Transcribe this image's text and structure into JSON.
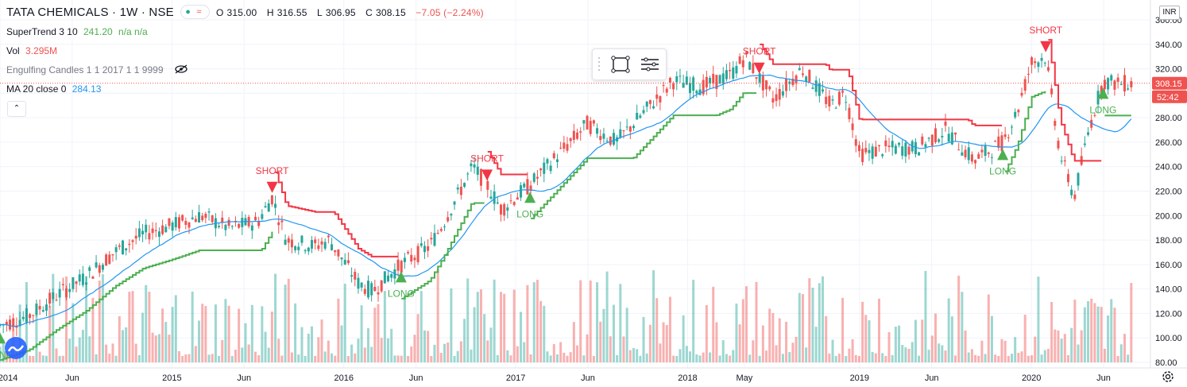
{
  "header": {
    "symbol": "TATA CHEMICALS · 1W · NSE",
    "open_label": "O",
    "open": "315.00",
    "high_label": "H",
    "high": "316.55",
    "low_label": "L",
    "low": "306.95",
    "close_label": "C",
    "close": "308.15",
    "change": "−7.05 (−2.24%)"
  },
  "indicators": [
    {
      "name": "SuperTrend 3 10",
      "value": "241.20",
      "extra": "n/a  n/a"
    },
    {
      "name": "Vol",
      "value": "3.295M"
    },
    {
      "name": "Engulfing Candles 1 1 2017 1 1 9999"
    },
    {
      "name": "MA 20 close 0",
      "value": "284.13"
    }
  ],
  "currency_badge": "INR",
  "colors": {
    "up": "#26a69a",
    "down": "#ef5350",
    "st_up": "#4caf50",
    "st_down": "#f23645",
    "ma": "#2196f3",
    "grid": "#f0f3fa"
  },
  "icons": [
    "visibility-off-icon",
    "chevron-up-icon",
    "rectangle-tool-icon",
    "settings-lines-icon",
    "gear-icon",
    "tradingview-logo-icon"
  ],
  "chart_data": {
    "type": "candlestick",
    "title": "TATA CHEMICALS",
    "yaxis": {
      "min": 80,
      "max": 360,
      "ticks": [
        80,
        100,
        120,
        140,
        160,
        180,
        200,
        220,
        240,
        260,
        280,
        300,
        320,
        340,
        360
      ],
      "tick_labels": [
        "80.00",
        "100.00",
        "120.00",
        "140.00",
        "160.00",
        "180.00",
        "200.00",
        "220.00",
        "240.00",
        "260.00",
        "280.00",
        "300.00",
        "320.00",
        "340.00",
        "360.00"
      ]
    },
    "xaxis": {
      "tick_labels": [
        "2014",
        "Jun",
        "2015",
        "Jun",
        "2016",
        "Jun",
        "2017",
        "Jun",
        "2018",
        "May",
        "2019",
        "Jun",
        "2020",
        "Jun"
      ]
    },
    "last_price": "308.15",
    "countdown": "52:42",
    "close_trend": [
      [
        "2014-01",
        110
      ],
      [
        "2014-03",
        118
      ],
      [
        "2014-05",
        135
      ],
      [
        "2014-07",
        150
      ],
      [
        "2014-09",
        170
      ],
      [
        "2014-11",
        185
      ],
      [
        "2015-01",
        192
      ],
      [
        "2015-03",
        200
      ],
      [
        "2015-05",
        190
      ],
      [
        "2015-07",
        195
      ],
      [
        "2015-08",
        215
      ],
      [
        "2015-09",
        180
      ],
      [
        "2015-11",
        175
      ],
      [
        "2015-12",
        180
      ],
      [
        "2016-02",
        145
      ],
      [
        "2016-03",
        138
      ],
      [
        "2016-05",
        160
      ],
      [
        "2016-07",
        175
      ],
      [
        "2016-08",
        195
      ],
      [
        "2016-10",
        240
      ],
      [
        "2016-11",
        225
      ],
      [
        "2016-12",
        205
      ],
      [
        "2017-02",
        225
      ],
      [
        "2017-04",
        250
      ],
      [
        "2017-06",
        275
      ],
      [
        "2017-08",
        260
      ],
      [
        "2017-10",
        285
      ],
      [
        "2017-12",
        310
      ],
      [
        "2018-02",
        305
      ],
      [
        "2018-04",
        315
      ],
      [
        "2018-05",
        330
      ],
      [
        "2018-07",
        295
      ],
      [
        "2018-09",
        320
      ],
      [
        "2018-11",
        290
      ],
      [
        "2018-12",
        300
      ],
      [
        "2019-01",
        250
      ],
      [
        "2019-03",
        255
      ],
      [
        "2019-05",
        255
      ],
      [
        "2019-07",
        270
      ],
      [
        "2019-09",
        245
      ],
      [
        "2019-11",
        260
      ],
      [
        "2019-12",
        285
      ],
      [
        "2020-01",
        325
      ],
      [
        "2020-02",
        330
      ],
      [
        "2020-03",
        250
      ],
      [
        "2020-04",
        215
      ],
      [
        "2020-05",
        270
      ],
      [
        "2020-06",
        310
      ],
      [
        "2020-07",
        308
      ]
    ],
    "series": [
      {
        "name": "SuperTrend 3 10"
      },
      {
        "name": "MA 20 close 0"
      },
      {
        "name": "Vol"
      }
    ],
    "signals": [
      {
        "label": "LONG",
        "date": "2014-01"
      },
      {
        "label": "SHORT",
        "date": "2015-08"
      },
      {
        "label": "LONG",
        "date": "2016-05"
      },
      {
        "label": "SHORT",
        "date": "2016-11"
      },
      {
        "label": "LONG",
        "date": "2017-02"
      },
      {
        "label": "SHORT",
        "date": "2018-06"
      },
      {
        "label": "LONG",
        "date": "2019-11"
      },
      {
        "label": "SHORT",
        "date": "2020-02"
      },
      {
        "label": "LONG",
        "date": "2020-06"
      }
    ]
  }
}
